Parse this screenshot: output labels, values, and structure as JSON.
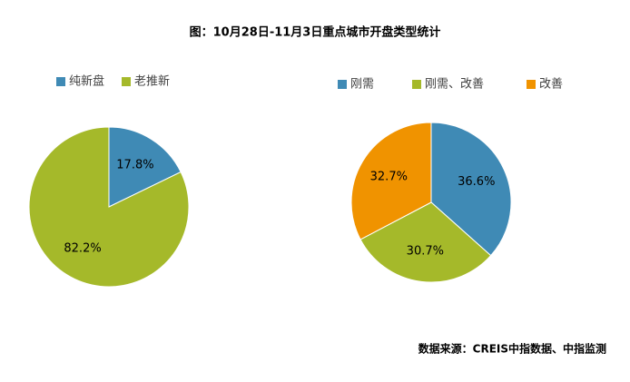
{
  "title": "图：10月28日-11月3日重点城市开盘类型统计",
  "source": "数据来源：CREIS中指数据、中指监测",
  "chart_data": [
    {
      "type": "pie",
      "categories": [
        "纯新盘",
        "老推新"
      ],
      "values": [
        17.8,
        82.2
      ],
      "value_labels": [
        "17.8%",
        "82.2%"
      ],
      "colors": [
        "#3f8ab5",
        "#a5b92a"
      ],
      "legend": "top"
    },
    {
      "type": "pie",
      "categories": [
        "刚需",
        "刚需、改善",
        "改善"
      ],
      "values": [
        36.6,
        30.7,
        32.7
      ],
      "value_labels": [
        "36.6%",
        "30.7%",
        "32.7%"
      ],
      "colors": [
        "#3f8ab5",
        "#a5b92a",
        "#f09300"
      ],
      "legend": "top"
    }
  ]
}
